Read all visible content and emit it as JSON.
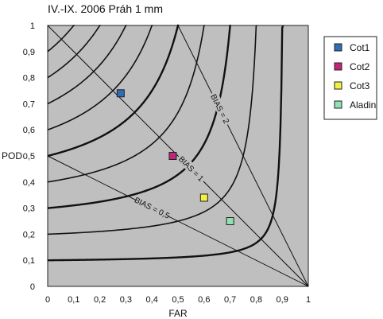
{
  "chart_data": {
    "type": "scatter",
    "title": "IV.-IX. 2006 Práh 1 mm",
    "xlabel": "FAR",
    "ylabel": "POD",
    "xlim": [
      0,
      1
    ],
    "ylim": [
      0,
      1
    ],
    "x_ticks": [
      "0",
      "0,1",
      "0,2",
      "0,3",
      "0,4",
      "0,5",
      "0,6",
      "0,7",
      "0,8",
      "0,9",
      "1"
    ],
    "y_ticks": [
      "0",
      "0,1",
      "0,2",
      "0,3",
      "0,4",
      "0,5",
      "0,6",
      "0,7",
      "0,8",
      "0,9",
      "1"
    ],
    "plot_background": "#bfbfbf",
    "legend_position": "right",
    "series": [
      {
        "name": "Cot1",
        "color": "#2f6db5",
        "x": 0.28,
        "y": 0.74
      },
      {
        "name": "Cot2",
        "color": "#c2247a",
        "x": 0.48,
        "y": 0.5
      },
      {
        "name": "Cot3",
        "color": "#f2ef45",
        "x": 0.6,
        "y": 0.34
      },
      {
        "name": "Aladin",
        "color": "#8fe0b3",
        "x": 0.7,
        "y": 0.25
      }
    ],
    "reference_lines": [
      {
        "label": "BIAS = 0,5",
        "bias": 0.5
      },
      {
        "label": "BIAS = 1",
        "bias": 1
      },
      {
        "label": "BIAS = 2",
        "bias": 2
      }
    ],
    "csi_isolines": [
      0.1,
      0.2,
      0.3,
      0.4,
      0.5,
      0.6,
      0.7,
      0.8,
      0.9
    ]
  }
}
